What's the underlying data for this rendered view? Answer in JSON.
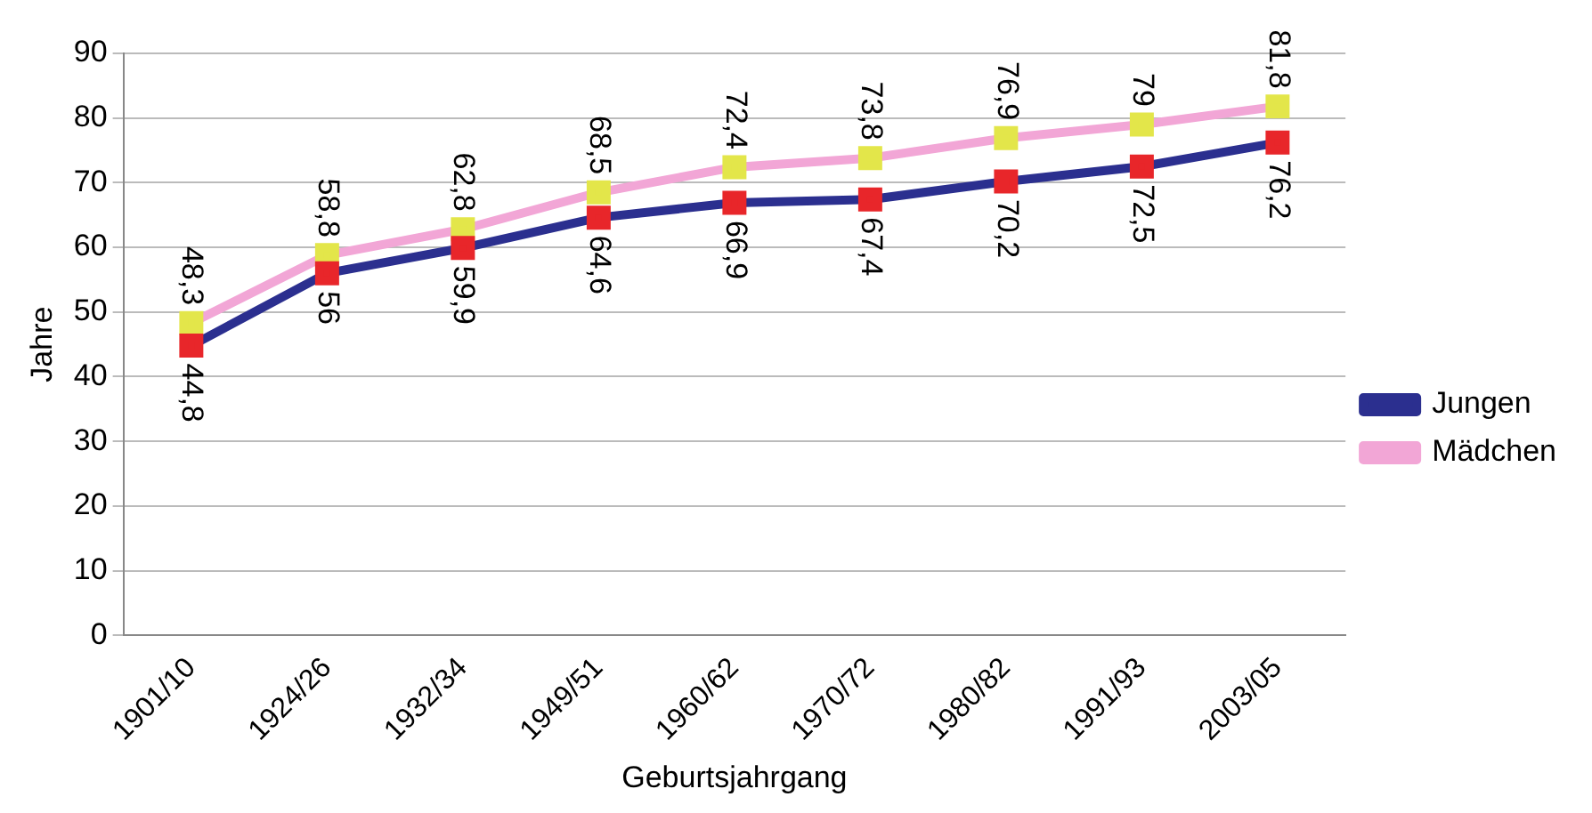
{
  "chart_data": {
    "type": "line",
    "xlabel": "Geburtsjahrgang",
    "ylabel": "Jahre",
    "categories": [
      "1901/10",
      "1924/26",
      "1932/34",
      "1949/51",
      "1960/62",
      "1970/72",
      "1980/82",
      "1991/93",
      "2003/05"
    ],
    "series": [
      {
        "name": "Jungen",
        "color": "#2b2f8f",
        "colors": [
          "#e8262a",
          "#e8262a",
          "#e8262a",
          "#e8262a",
          "#e8262a",
          "#e8262a",
          "#e8262a",
          "#e8262a",
          "#e8262a"
        ],
        "values": [
          44.8,
          56,
          59.9,
          64.6,
          66.9,
          67.4,
          70.2,
          72.5,
          76.2
        ],
        "value_labels": [
          "44,8",
          "56",
          "59,9",
          "64,6",
          "66,9",
          "67,4",
          "70,2",
          "72,5",
          "76,2"
        ]
      },
      {
        "name": "Mädchen",
        "color": "#f2a6d6",
        "colors": [
          "#e3e64a",
          "#e3e64a",
          "#e3e64a",
          "#e3e64a",
          "#e3e64a",
          "#e3e64a",
          "#e3e64a",
          "#e3e64a",
          "#e3e64a"
        ],
        "values": [
          48.3,
          58.8,
          62.8,
          68.5,
          72.4,
          73.8,
          76.9,
          79,
          81.8
        ],
        "value_labels": [
          "48,3",
          "58,8",
          "62,8",
          "68,5",
          "72,4",
          "73,8",
          "76,9",
          "79",
          "81,8"
        ]
      }
    ],
    "ylim": [
      0,
      90
    ],
    "yticks": [
      0,
      10,
      20,
      30,
      40,
      50,
      60,
      70,
      80,
      90
    ],
    "grid": "y",
    "legend": "right",
    "marker": "square",
    "line_style": "solid"
  }
}
